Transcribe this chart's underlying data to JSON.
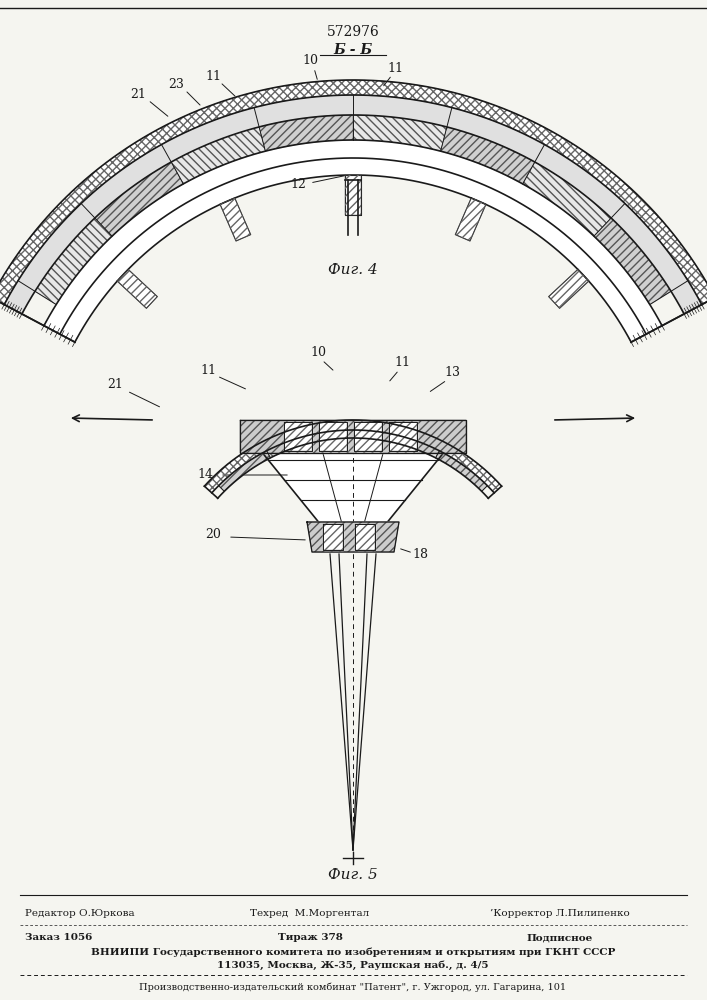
{
  "patent_number": "572976",
  "section_label": "Б - Б",
  "fig4_label": "Фиг. 4",
  "fig5_label": "Фиг. 5",
  "bg_color": "#f5f5f0",
  "line_color": "#1a1a1a",
  "footer_line1_left": "Редактор О.Юркова",
  "footer_line1_mid": "Техред  М.Моргентал",
  "footer_line1_right": "’Корректор Л.Пилипенко",
  "footer_line2_left": "Заказ 1056",
  "footer_line2_mid": "Тираж 378",
  "footer_line2_right": "Подписное",
  "footer_line3": "ВНИИПИ Государственного комитета по изобретениям и открытиям при ГКНТ СССР",
  "footer_line4": "113035, Москва, Ж-35, Раушская наб., д. 4/5",
  "footer_line5": "Производственно-издательский комбинат \"Патент\", г. Ужгород, ул. Гагарина, 101"
}
